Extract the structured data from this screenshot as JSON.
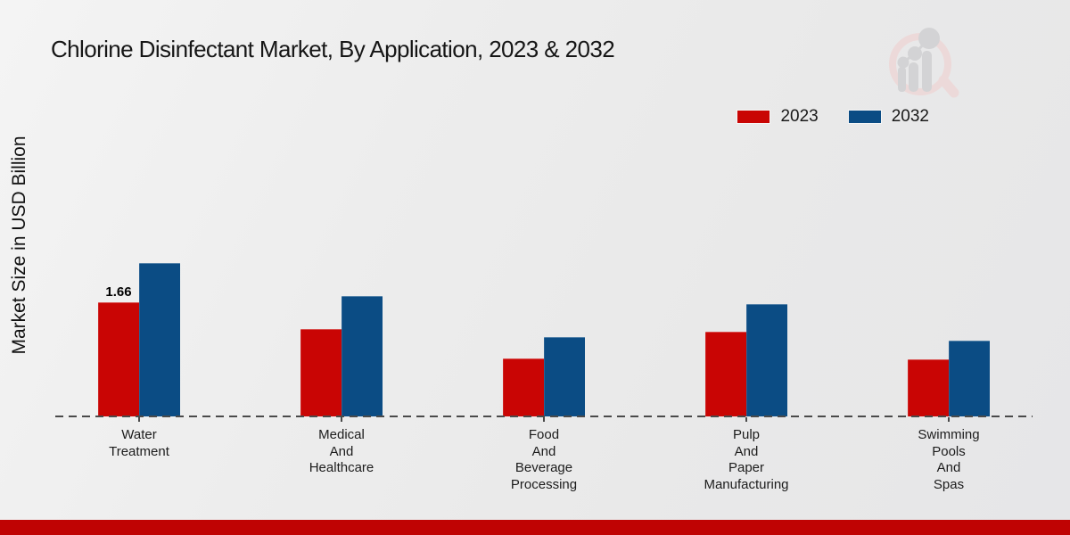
{
  "page": {
    "title": "Chlorine Disinfectant Market, By Application, 2023 & 2032"
  },
  "axis": {
    "ylabel": "Market Size in USD Billion"
  },
  "legend": {
    "items": [
      {
        "label": "2023",
        "color": "#c90504"
      },
      {
        "label": "2032",
        "color": "#0b4c84"
      }
    ]
  },
  "chart_data": {
    "type": "bar",
    "title": "Chlorine Disinfectant Market, By Application, 2023 & 2032",
    "xlabel": "",
    "ylabel": "Market Size in USD Billion",
    "categories": [
      "Water Treatment",
      "Medical And Healthcare",
      "Food And Beverage Processing",
      "Pulp And Paper Manufacturing",
      "Swimming Pools And Spas"
    ],
    "category_label_lines": [
      [
        "Water",
        "Treatment"
      ],
      [
        "Medical",
        "And",
        "Healthcare"
      ],
      [
        "Food",
        "And",
        "Beverage",
        "Processing"
      ],
      [
        "Pulp",
        "And",
        "Paper",
        "Manufacturing"
      ],
      [
        "Swimming",
        "Pools",
        "And",
        "Spas"
      ]
    ],
    "series": [
      {
        "name": "2023",
        "color": "#c90504",
        "values": [
          1.66,
          1.27,
          0.84,
          1.23,
          0.83
        ]
      },
      {
        "name": "2032",
        "color": "#0b4c84",
        "values": [
          2.24,
          1.75,
          1.16,
          1.63,
          1.11
        ]
      }
    ],
    "annotations": [
      {
        "series": "2023",
        "category": "Water Treatment",
        "text": "1.66"
      }
    ],
    "ylim": [
      0,
      2.9
    ],
    "grid": false,
    "legend_position": "top-right",
    "baseline_style": "dashed"
  },
  "footer": {
    "strip_color": "#bf0303"
  },
  "watermark": {
    "name": "market-research-future-logo",
    "ring_color": "#edd9d9",
    "bar_color": "#d2d2d4"
  }
}
